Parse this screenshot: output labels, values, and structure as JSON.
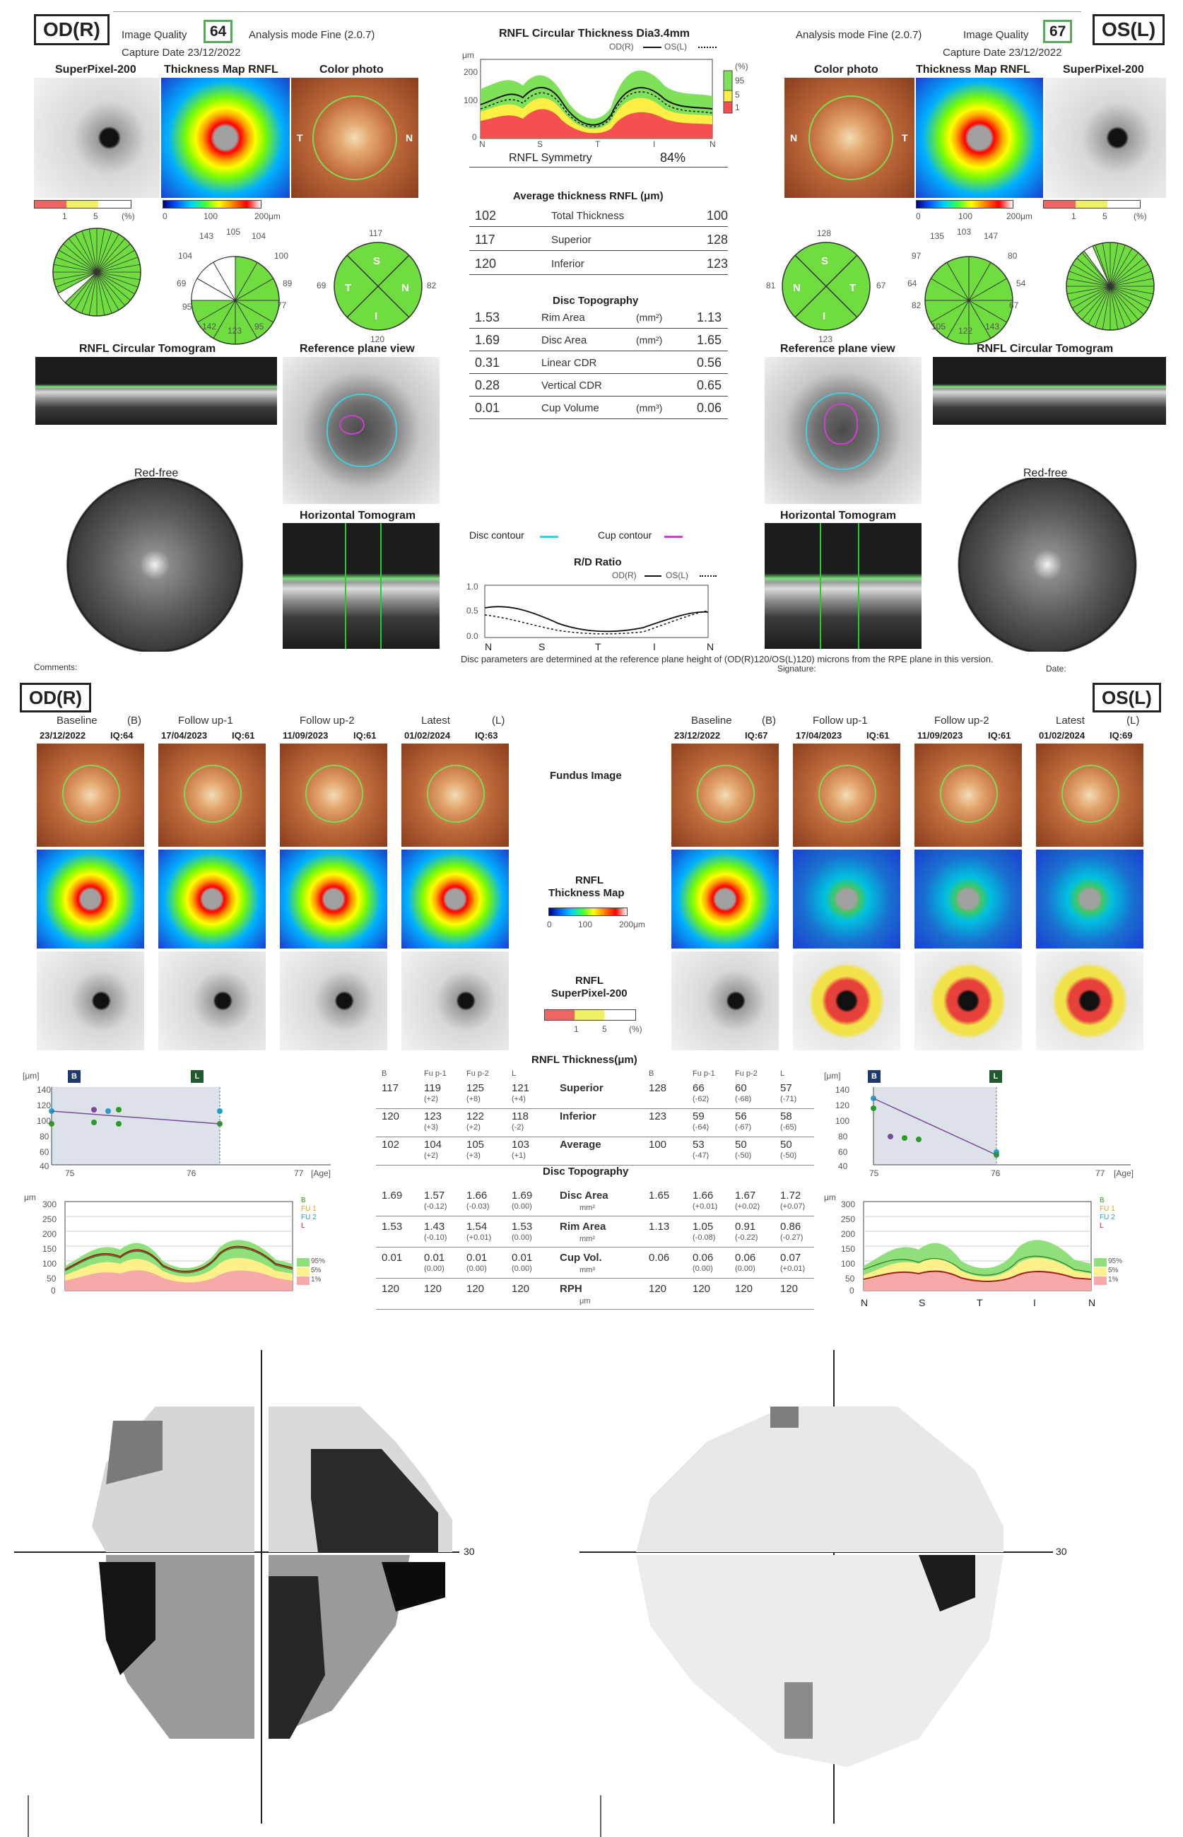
{
  "report": {
    "od": {
      "eye": "OD(R)",
      "iq_label": "Image Quality",
      "iq": "64",
      "mode": "Analysis mode Fine (2.0.7)",
      "capture": "Capture Date 23/12/2022",
      "superpixel": "SuperPixel-200",
      "thickmap": "Thickness Map RNFL",
      "color": "Color photo",
      "sp_scale": [
        "1",
        "5",
        "(%)"
      ],
      "tm_scale": [
        "0",
        "100",
        "200μm"
      ],
      "clock": [
        "143",
        "105",
        "104",
        "104",
        "100",
        "69",
        "89",
        "77",
        "95",
        "142",
        "123",
        "95"
      ],
      "quad": {
        "top": "117",
        "left": "69",
        "right": "82",
        "bottom": "120",
        "S": "S",
        "T": "T",
        "N": "N",
        "I": "I"
      },
      "circ_tomo": "RNFL Circular Tomogram",
      "ref_plane": "Reference plane view",
      "red_free": "Red-free",
      "horiz_tomo": "Horizontal Tomogram",
      "comments": "Comments:"
    },
    "os": {
      "eye": "OS(L)",
      "iq_label": "Image Quality",
      "iq": "67",
      "mode": "Analysis mode Fine (2.0.7)",
      "capture": "Capture Date 23/12/2022",
      "superpixel": "SuperPixel-200",
      "thickmap": "Thickness Map RNFL",
      "color": "Color photo",
      "sp_scale": [
        "1",
        "5",
        "(%)"
      ],
      "tm_scale": [
        "0",
        "100",
        "200μm"
      ],
      "clock": [
        "135",
        "103",
        "147",
        "97",
        "80",
        "64",
        "54",
        "82",
        "67",
        "105",
        "122",
        "143"
      ],
      "quad": {
        "top": "128",
        "left": "81",
        "right": "67",
        "bottom": "123",
        "S": "S",
        "T": "T",
        "N": "N",
        "I": "I"
      },
      "circ_tomo": "RNFL Circular Tomogram",
      "ref_plane": "Reference plane view",
      "red_free": "Red-free",
      "horiz_tomo": "Horizontal Tomogram",
      "signature": "Signature:",
      "date": "Date:"
    },
    "center": {
      "circ_title": "RNFL Circular Thickness Dia3.4mm",
      "legend_od": "OD(R)",
      "legend_os": "OS(L)",
      "um": "μm",
      "pct": "(%)",
      "bands": [
        "95",
        "5",
        "1"
      ],
      "y_ticks": [
        "200",
        "100",
        "0"
      ],
      "x_ticks": [
        "N",
        "S",
        "T",
        "I",
        "N"
      ],
      "sym_label": "RNFL Symmetry",
      "sym_val": "84%",
      "avg_title": "Average thickness RNFL (μm)",
      "avg_rows": [
        {
          "od": "102",
          "label": "Total Thickness",
          "os": "100"
        },
        {
          "od": "117",
          "label": "Superior",
          "os": "128"
        },
        {
          "od": "120",
          "label": "Inferior",
          "os": "123"
        }
      ],
      "disc_title": "Disc Topography",
      "disc_rows": [
        {
          "od": "1.53",
          "label": "Rim Area",
          "unit": "(mm²)",
          "os": "1.13"
        },
        {
          "od": "1.69",
          "label": "Disc Area",
          "unit": "(mm²)",
          "os": "1.65"
        },
        {
          "od": "0.31",
          "label": "Linear CDR",
          "unit": "",
          "os": "0.56"
        },
        {
          "od": "0.28",
          "label": "Vertical CDR",
          "unit": "",
          "os": "0.65"
        },
        {
          "od": "0.01",
          "label": "Cup Volume",
          "unit": "(mm³)",
          "os": "0.06"
        }
      ],
      "disc_contour": "Disc contour",
      "cup_contour": "Cup contour",
      "rd_title": "R/D Ratio",
      "rd_legend_od": "OD(R)",
      "rd_legend_os": "OS(L)",
      "rd_y": [
        "1.0",
        "0.5",
        "0.0"
      ],
      "rd_x": [
        "N",
        "S",
        "T",
        "I",
        "N"
      ],
      "footnote": "Disc parameters are determined at the reference plane height of (OD(R)120/OS(L)120) microns from the RPE plane in this version."
    }
  },
  "followup": {
    "od_eye": "OD(R)",
    "os_eye": "OS(L)",
    "od_cols": [
      {
        "name": "Baseline",
        "tag": "(B)",
        "date": "23/12/2022",
        "iq": "IQ:64"
      },
      {
        "name": "Follow up-1",
        "tag": "",
        "date": "17/04/2023",
        "iq": "IQ:61"
      },
      {
        "name": "Follow up-2",
        "tag": "",
        "date": "11/09/2023",
        "iq": "IQ:61"
      },
      {
        "name": "Latest",
        "tag": "(L)",
        "date": "01/02/2024",
        "iq": "IQ:63"
      }
    ],
    "os_cols": [
      {
        "name": "Baseline",
        "tag": "(B)",
        "date": "23/12/2022",
        "iq": "IQ:67"
      },
      {
        "name": "Follow up-1",
        "tag": "",
        "date": "17/04/2023",
        "iq": "IQ:61"
      },
      {
        "name": "Follow up-2",
        "tag": "",
        "date": "11/09/2023",
        "iq": "IQ:61"
      },
      {
        "name": "Latest",
        "tag": "(L)",
        "date": "01/02/2024",
        "iq": "IQ:69"
      }
    ],
    "fundus_label": "Fundus Image",
    "thick_label_1": "RNFL",
    "thick_label_2": "Thickness Map",
    "thick_scale": [
      "0",
      "100",
      "200μm"
    ],
    "sp_label_1": "RNFL",
    "sp_label_2": "SuperPixel-200",
    "sp_scale": [
      "1",
      "5",
      "(%)"
    ],
    "table_title": "RNFL Thickness(μm)",
    "col_heads": [
      "B",
      "Fu p-1",
      "Fu p-2",
      "L",
      "",
      "B",
      "Fu p-1",
      "Fu p-2",
      "L"
    ],
    "thick_rows": [
      {
        "label": "Superior",
        "od": [
          "117",
          "119",
          "125",
          "121"
        ],
        "od_d": [
          "",
          "(+2)",
          "(+8)",
          "(+4)"
        ],
        "os": [
          "128",
          "66",
          "60",
          "57"
        ],
        "os_d": [
          "",
          "(-62)",
          "(-68)",
          "(-71)"
        ]
      },
      {
        "label": "Inferior",
        "od": [
          "120",
          "123",
          "122",
          "118"
        ],
        "od_d": [
          "",
          "(+3)",
          "(+2)",
          "(-2)"
        ],
        "os": [
          "123",
          "59",
          "56",
          "58"
        ],
        "os_d": [
          "",
          "(-64)",
          "(-67)",
          "(-65)"
        ]
      },
      {
        "label": "Average",
        "od": [
          "102",
          "104",
          "105",
          "103"
        ],
        "od_d": [
          "",
          "(+2)",
          "(+3)",
          "(+1)"
        ],
        "os": [
          "100",
          "53",
          "50",
          "50"
        ],
        "os_d": [
          "",
          "(-47)",
          "(-50)",
          "(-50)"
        ]
      }
    ],
    "disc_title": "Disc Topography",
    "disc_rows": [
      {
        "label": "Disc Area",
        "unit": "mm²",
        "od": [
          "1.69",
          "1.57",
          "1.66",
          "1.69"
        ],
        "od_d": [
          "",
          "(-0.12)",
          "(-0.03)",
          "(0.00)"
        ],
        "os": [
          "1.65",
          "1.66",
          "1.67",
          "1.72"
        ],
        "os_d": [
          "",
          "(+0.01)",
          "(+0.02)",
          "(+0.07)"
        ]
      },
      {
        "label": "Rim Area",
        "unit": "mm²",
        "od": [
          "1.53",
          "1.43",
          "1.54",
          "1.53"
        ],
        "od_d": [
          "",
          "(-0.10)",
          "(+0.01)",
          "(0.00)"
        ],
        "os": [
          "1.13",
          "1.05",
          "0.91",
          "0.86"
        ],
        "os_d": [
          "",
          "(-0.08)",
          "(-0.22)",
          "(-0.27)"
        ]
      },
      {
        "label": "Cup Vol.",
        "unit": "mm³",
        "od": [
          "0.01",
          "0.01",
          "0.01",
          "0.01"
        ],
        "od_d": [
          "",
          "(0.00)",
          "(0.00)",
          "(0.00)"
        ],
        "os": [
          "0.06",
          "0.06",
          "0.06",
          "0.07"
        ],
        "os_d": [
          "",
          "(0.00)",
          "(0.00)",
          "(+0.01)"
        ]
      },
      {
        "label": "RPH",
        "unit": "μm",
        "od": [
          "120",
          "120",
          "120",
          "120"
        ],
        "od_d": [
          "",
          "",
          "",
          ""
        ],
        "os": [
          "120",
          "120",
          "120",
          "120"
        ],
        "os_d": [
          "",
          "",
          "",
          ""
        ]
      }
    ],
    "trend_um": "[μm]",
    "trend_age": "[Age]",
    "trend_y": [
      "140",
      "120",
      "100",
      "80",
      "60",
      "40"
    ],
    "trend_x": [
      "75",
      "76",
      "77"
    ],
    "badge_b": "B",
    "badge_l": "L",
    "profile_um": "μm",
    "profile_y": [
      "300",
      "250",
      "200",
      "150",
      "100",
      "50",
      "0"
    ],
    "profile_x": [
      "N",
      "S",
      "T",
      "I",
      "N"
    ],
    "profile_legend": [
      "B",
      "FU 1",
      "FU 2",
      "L"
    ],
    "profile_bands": [
      "95%",
      "5%",
      "1%"
    ]
  },
  "visual_fields": {
    "axis_label_od": "30",
    "axis_label_os": "30"
  }
}
